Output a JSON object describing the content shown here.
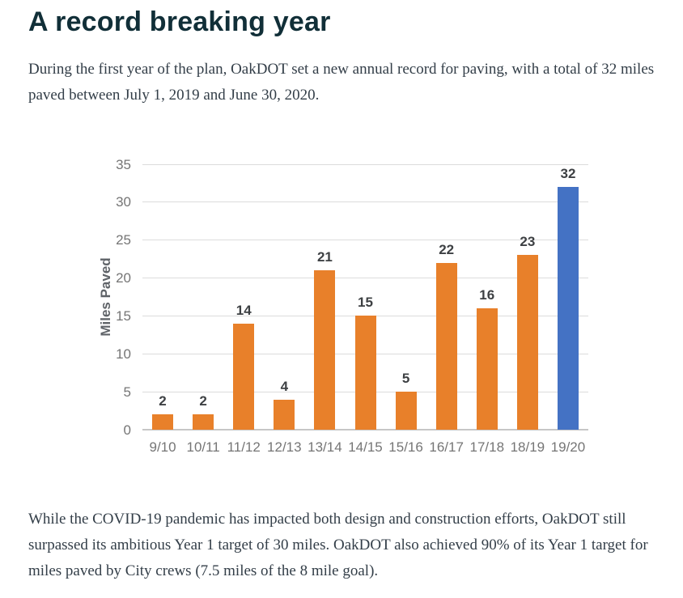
{
  "page": {
    "title": "A record breaking year",
    "intro": "During the first year of the plan, OakDOT set a new annual record for paving, with a total of 32 miles paved between July 1, 2019 and June 30, 2020.",
    "outro": "While the COVID-19 pandemic has impacted both design and construction efforts, OakDOT still surpassed its ambitious Year 1 target of 30 miles. OakDOT also achieved 90% of its Year 1 target for miles paved by City crews (7.5 miles of the 8 mile goal)."
  },
  "colors": {
    "heading_text": "#112f38",
    "body_text": "#333e48",
    "bar_default": "#e8802a",
    "bar_highlight": "#4472c4",
    "axis_tick_text": "#757575",
    "value_label_text": "#3d4043",
    "axis_title_text": "#5f6368",
    "gridline": "#dcdcdc",
    "baseline": "#c6c6c6"
  },
  "chart_data": {
    "type": "bar",
    "title": "",
    "categories": [
      "9/10",
      "10/11",
      "11/12",
      "12/13",
      "13/14",
      "14/15",
      "15/16",
      "16/17",
      "17/18",
      "18/19",
      "19/20"
    ],
    "values": [
      2,
      2,
      14,
      4,
      21,
      15,
      5,
      22,
      16,
      23,
      32
    ],
    "data_labels": [
      "2",
      "2",
      "14",
      "4",
      "21",
      "15",
      "5",
      "22",
      "16",
      "23",
      "32"
    ],
    "xlabel": "",
    "ylabel": "Miles Paved",
    "ylim": [
      0,
      35
    ],
    "yticks": [
      0,
      5,
      10,
      15,
      20,
      25,
      30,
      35
    ],
    "grid": true,
    "legend": "none",
    "bar_color": "#e8802a",
    "highlight_index": 10,
    "highlight_color": "#4472c4"
  }
}
